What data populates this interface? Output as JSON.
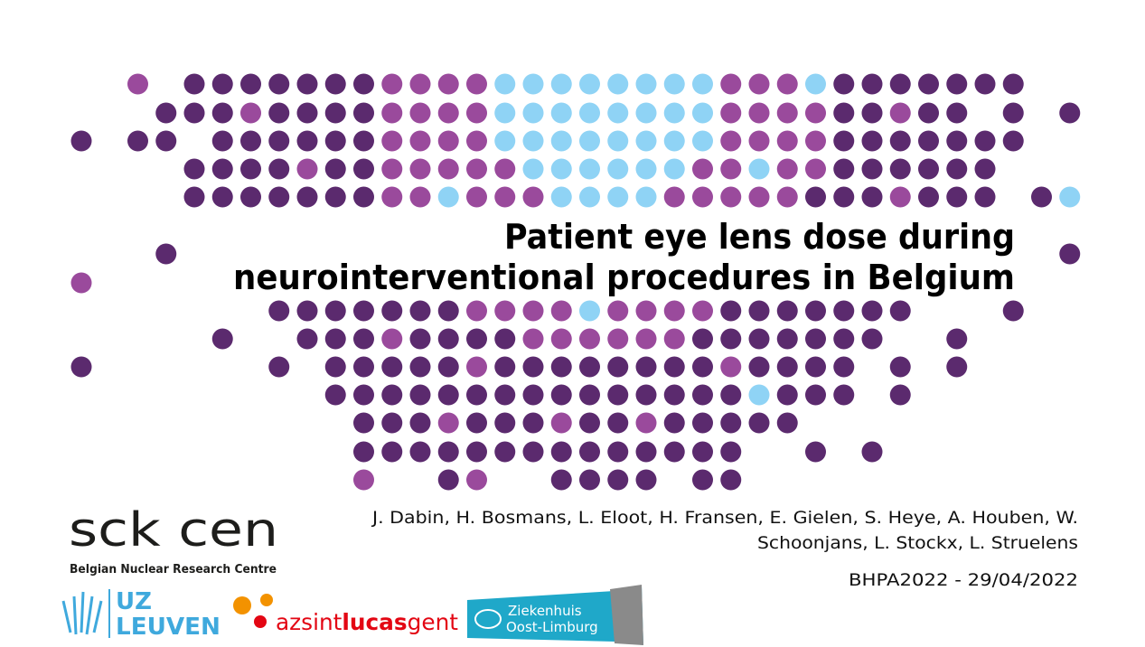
{
  "title": {
    "lines": [
      "Patient eye lens dose during",
      "neurointerventional procedures in Belgium"
    ]
  },
  "authors": {
    "lines": [
      "J. Dabin, H. Bosmans, L. Eloot, H. Fransen, E. Gielen, S. Heye, A. Houben, W.",
      "Schoonjans, L. Stockx, L. Struelens"
    ]
  },
  "event": "BHPA2022 - 29/04/2022",
  "logos": {
    "sck_cen": {
      "name": "sck cen",
      "tagline": "Belgian Nuclear Research Centre"
    },
    "uz_leuven": [
      "UZ",
      "LEUVEN"
    ],
    "az_sint_lucas": [
      "az",
      "sint",
      "lucas",
      "gent"
    ],
    "zol": [
      "Ziekenhuis",
      "Oost-Limburg"
    ]
  }
}
